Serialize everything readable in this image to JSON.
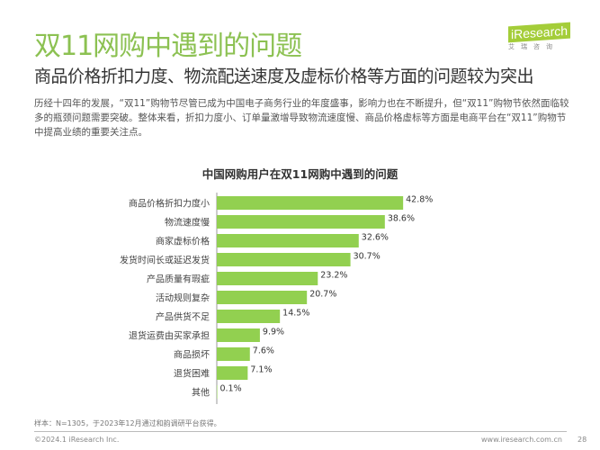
{
  "header": {
    "title": "双11网购中遇到的问题",
    "subtitle": "商品价格折扣力度、物流配送速度及虚标价格等方面的问题较为突出",
    "paragraph": "历经十四年的发展，“双11”购物节尽管已成为中国电子商务行业的年度盛事，影响力也在不断提升，但“双11”购物节依然面临较多的瓶颈问题需要突破。整体来看，折扣力度小、订单量激增导致物流速度慢、商品价格虚标等方面是电商平台在“双11”购物节中提高业绩的重要关注点。"
  },
  "logo": {
    "brand": "iResearch",
    "cn": "艾瑞咨询"
  },
  "chart_data": {
    "type": "bar",
    "orientation": "horizontal",
    "title": "中国网购用户在双11网购中遇到的问题",
    "categories": [
      "商品价格折扣力度小",
      "物流速度慢",
      "商家虚标价格",
      "发货时间长或延迟发货",
      "产品质量有瑕疵",
      "活动规则复杂",
      "产品供货不足",
      "退货运费由买家承担",
      "商品损坏",
      "退货困难",
      "其他"
    ],
    "values": [
      42.8,
      38.6,
      32.6,
      30.7,
      23.2,
      20.7,
      14.5,
      9.9,
      7.6,
      7.1,
      0.1
    ],
    "labels": [
      "42.8%",
      "38.6%",
      "32.6%",
      "30.7%",
      "23.2%",
      "20.7%",
      "14.5%",
      "9.9%",
      "7.6%",
      "7.1%",
      "0.1%"
    ],
    "unit": "%",
    "color": "#92d050"
  },
  "footer": {
    "note": "样本：N=1305，于2023年12月通过和韵调研平台获得。",
    "copyright": "©2024.1 iResearch Inc.",
    "url": "www.iresearch.com.cn",
    "page": "28"
  }
}
